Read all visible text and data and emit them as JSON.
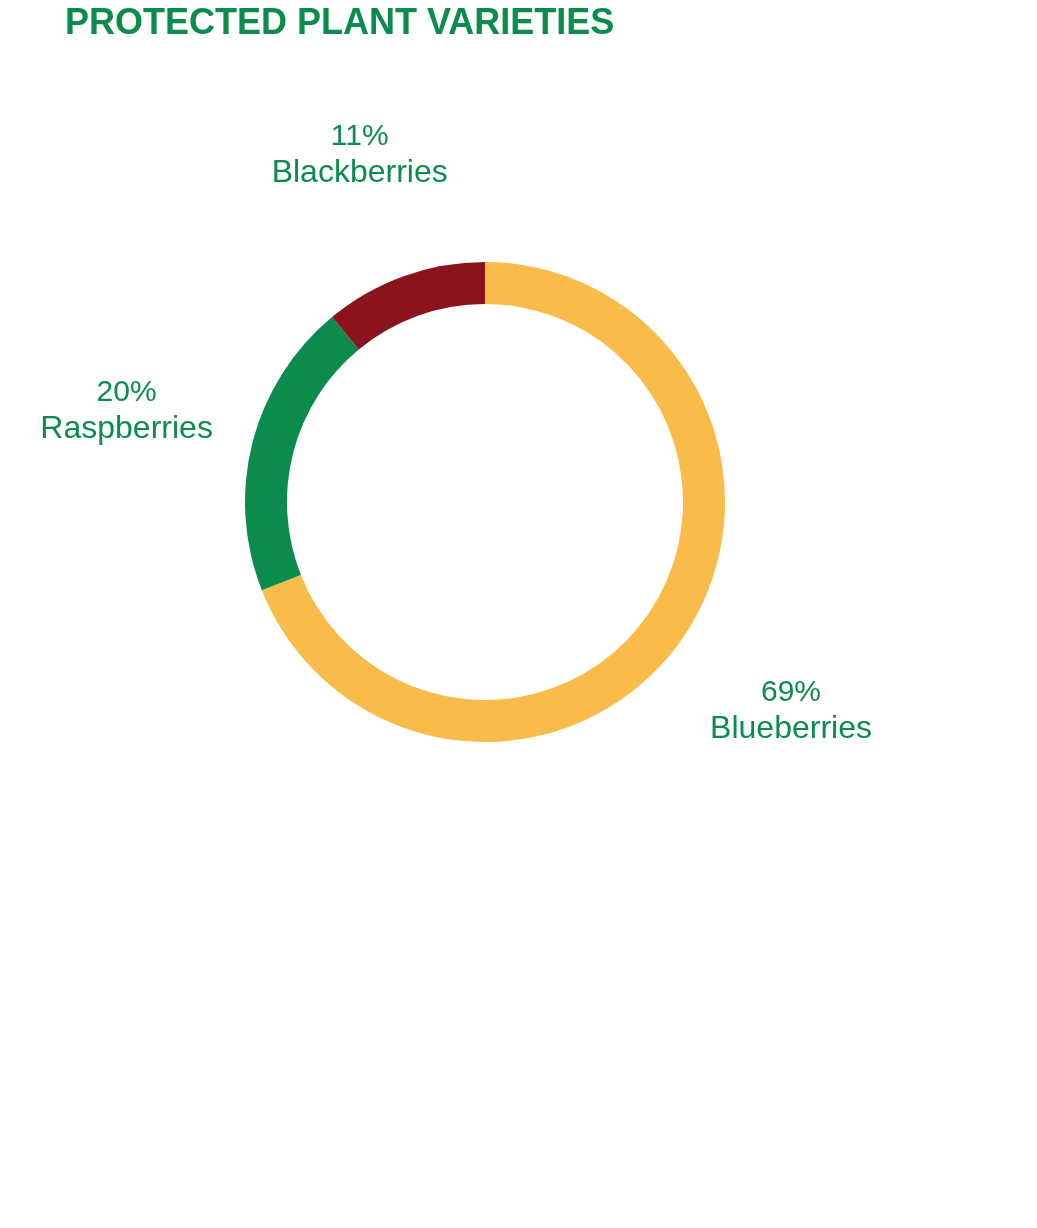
{
  "chart_data": {
    "type": "donut",
    "title": "PROTECTED PLANT VARIETIES",
    "categories": [
      "Blueberries",
      "Raspberries",
      "Blackberries"
    ],
    "values": [
      69,
      20,
      11
    ],
    "value_labels": [
      "69%",
      "20%",
      "11%"
    ],
    "colors": [
      "#f9bc4a",
      "#0c8c4c",
      "#8b141c"
    ],
    "legend": false
  }
}
